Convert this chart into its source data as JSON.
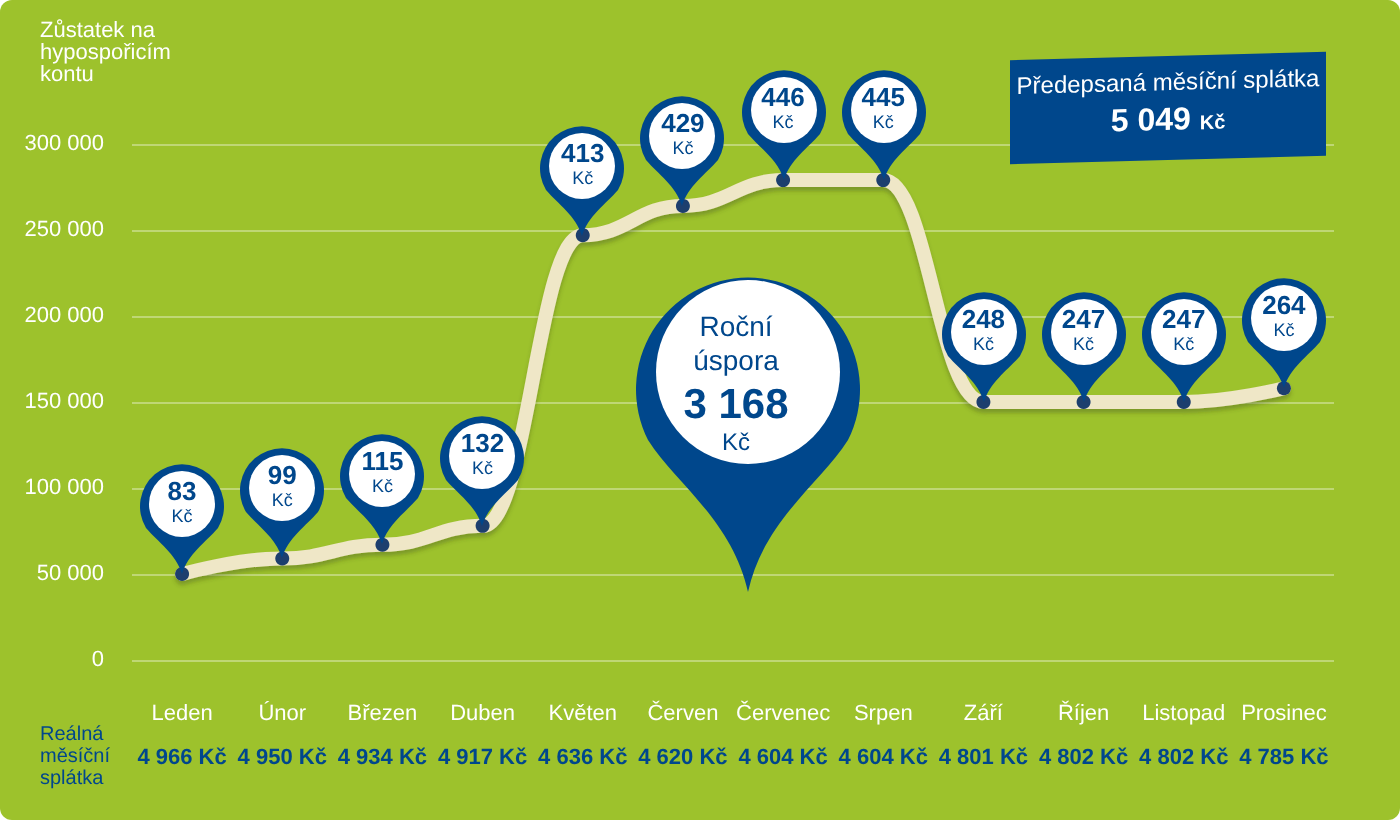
{
  "chart_data": {
    "type": "line",
    "ylabel": "Zůstatek na hypospořicím kontu",
    "categories": [
      "Leden",
      "Únor",
      "Březen",
      "Duben",
      "Květen",
      "Červen",
      "Červenec",
      "Srpen",
      "Září",
      "Říjen",
      "Listopad",
      "Prosinec"
    ],
    "series": [
      {
        "color": "#efe7c7",
        "values": [
          50000,
          59000,
          67000,
          78000,
          247000,
          264000,
          279000,
          279000,
          150000,
          150000,
          150000,
          158000
        ]
      }
    ],
    "ylim": [
      0,
      300000
    ],
    "yticks": [
      {
        "value": 0,
        "label": "0"
      },
      {
        "value": 50000,
        "label": "50 000"
      },
      {
        "value": 100000,
        "label": "100 000"
      },
      {
        "value": 150000,
        "label": "150 000"
      },
      {
        "value": 200000,
        "label": "200 000"
      },
      {
        "value": 250000,
        "label": "250 000"
      },
      {
        "value": 300000,
        "label": "300 000"
      }
    ],
    "grid": "y",
    "marker": "circle",
    "line_style": "solid",
    "annotations": [
      "Reálná měsíční splátka",
      "4 966 Kč",
      "4 950 Kč",
      "4 934 Kč",
      "4 917 Kč",
      "4 636 Kč",
      "4 620 Kč",
      "4 604 Kč",
      "4 604 Kč",
      "4 801 Kč",
      "4 802 Kč",
      "4 802 Kč",
      "4 785 Kč",
      "Předepsaná měsíční splátka",
      "5 049 Kč",
      "Roční úspora",
      "3 168 Kč",
      {
        "text": "83 Kč",
        "x": "Leden",
        "y": 50000
      },
      {
        "text": "99 Kč",
        "x": "Únor",
        "y": 59000
      },
      {
        "text": "115 Kč",
        "x": "Březen",
        "y": 67000
      },
      {
        "text": "132 Kč",
        "x": "Duben",
        "y": 78000
      },
      {
        "text": "413 Kč",
        "x": "Květen",
        "y": 247000
      },
      {
        "text": "429 Kč",
        "x": "Červen",
        "y": 264000
      },
      {
        "text": "446 Kč",
        "x": "Červenec",
        "y": 279000
      },
      {
        "text": "445 Kč",
        "x": "Srpen",
        "y": 279000
      },
      {
        "text": "248 Kč",
        "x": "Září",
        "y": 150000
      },
      {
        "text": "247 Kč",
        "x": "Říjen",
        "y": 150000
      },
      {
        "text": "247 Kč",
        "x": "Listopad",
        "y": 150000
      },
      {
        "text": "264 Kč",
        "x": "Prosinec",
        "y": 158000
      }
    ]
  }
}
